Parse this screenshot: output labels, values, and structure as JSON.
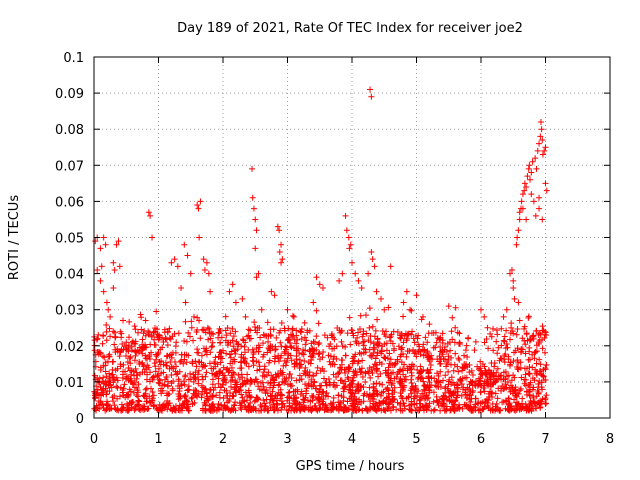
{
  "chart_data": {
    "type": "scatter",
    "title": "Day 189 of 2021, Rate Of TEC Index for receiver joe2",
    "xlabel": "GPS time / hours",
    "ylabel": "ROTI / TECUs",
    "xlim": [
      0,
      8
    ],
    "ylim": [
      0,
      0.1
    ],
    "xticks": [
      "0",
      "1",
      "2",
      "3",
      "4",
      "5",
      "6",
      "7",
      "8"
    ],
    "yticks": [
      "0",
      "0.01",
      "0.02",
      "0.03",
      "0.04",
      "0.05",
      "0.06",
      "0.07",
      "0.08",
      "0.09",
      "0.1"
    ],
    "grid": true,
    "marker": "+",
    "marker_color": "#ff0000",
    "series": [
      {
        "name": "ROTI",
        "points": [
          [
            0.02,
            0.049
          ],
          [
            0.05,
            0.05
          ],
          [
            0.05,
            0.041
          ],
          [
            0.1,
            0.047
          ],
          [
            0.12,
            0.042
          ],
          [
            0.15,
            0.05
          ],
          [
            0.18,
            0.048
          ],
          [
            0.1,
            0.038
          ],
          [
            0.15,
            0.035
          ],
          [
            0.2,
            0.032
          ],
          [
            0.22,
            0.03
          ],
          [
            0.3,
            0.043
          ],
          [
            0.32,
            0.041
          ],
          [
            0.35,
            0.048
          ],
          [
            0.38,
            0.049
          ],
          [
            0.4,
            0.042
          ],
          [
            0.3,
            0.036
          ],
          [
            0.25,
            0.028
          ],
          [
            0.45,
            0.027
          ],
          [
            0.5,
            0.021
          ],
          [
            0.85,
            0.057
          ],
          [
            0.87,
            0.056
          ],
          [
            0.9,
            0.05
          ],
          [
            0.8,
            0.027
          ],
          [
            0.95,
            0.024
          ],
          [
            1.0,
            0.018
          ],
          [
            1.2,
            0.043
          ],
          [
            1.25,
            0.044
          ],
          [
            1.3,
            0.042
          ],
          [
            1.4,
            0.048
          ],
          [
            1.45,
            0.045
          ],
          [
            1.5,
            0.04
          ],
          [
            1.35,
            0.036
          ],
          [
            1.42,
            0.032
          ],
          [
            1.55,
            0.028
          ],
          [
            1.6,
            0.059
          ],
          [
            1.62,
            0.058
          ],
          [
            1.65,
            0.06
          ],
          [
            1.63,
            0.05
          ],
          [
            1.7,
            0.044
          ],
          [
            1.72,
            0.041
          ],
          [
            1.75,
            0.043
          ],
          [
            1.78,
            0.04
          ],
          [
            1.8,
            0.035
          ],
          [
            2.1,
            0.035
          ],
          [
            2.15,
            0.037
          ],
          [
            2.2,
            0.032
          ],
          [
            2.3,
            0.033
          ],
          [
            2.35,
            0.028
          ],
          [
            2.45,
            0.069
          ],
          [
            2.46,
            0.061
          ],
          [
            2.48,
            0.058
          ],
          [
            2.5,
            0.055
          ],
          [
            2.52,
            0.052
          ],
          [
            2.5,
            0.047
          ],
          [
            2.55,
            0.04
          ],
          [
            2.52,
            0.039
          ],
          [
            2.6,
            0.03
          ],
          [
            2.85,
            0.053
          ],
          [
            2.87,
            0.052
          ],
          [
            2.9,
            0.048
          ],
          [
            2.88,
            0.046
          ],
          [
            2.92,
            0.044
          ],
          [
            2.9,
            0.043
          ],
          [
            2.75,
            0.035
          ],
          [
            2.8,
            0.034
          ],
          [
            3.0,
            0.03
          ],
          [
            3.1,
            0.028
          ],
          [
            3.45,
            0.039
          ],
          [
            3.5,
            0.037
          ],
          [
            3.55,
            0.036
          ],
          [
            3.4,
            0.032
          ],
          [
            3.8,
            0.038
          ],
          [
            3.85,
            0.04
          ],
          [
            3.9,
            0.056
          ],
          [
            3.92,
            0.052
          ],
          [
            3.95,
            0.05
          ],
          [
            3.98,
            0.048
          ],
          [
            3.96,
            0.047
          ],
          [
            4.0,
            0.043
          ],
          [
            4.05,
            0.04
          ],
          [
            4.1,
            0.038
          ],
          [
            4.15,
            0.036
          ],
          [
            4.28,
            0.091
          ],
          [
            4.3,
            0.089
          ],
          [
            4.3,
            0.046
          ],
          [
            4.32,
            0.044
          ],
          [
            4.35,
            0.042
          ],
          [
            4.25,
            0.04
          ],
          [
            4.38,
            0.035
          ],
          [
            4.45,
            0.033
          ],
          [
            4.5,
            0.03
          ],
          [
            4.6,
            0.042
          ],
          [
            4.8,
            0.032
          ],
          [
            4.85,
            0.035
          ],
          [
            4.9,
            0.03
          ],
          [
            5.0,
            0.034
          ],
          [
            5.1,
            0.028
          ],
          [
            5.2,
            0.026
          ],
          [
            5.5,
            0.031
          ],
          [
            5.6,
            0.025
          ],
          [
            5.8,
            0.022
          ],
          [
            6.0,
            0.03
          ],
          [
            6.05,
            0.028
          ],
          [
            6.1,
            0.025
          ],
          [
            6.35,
            0.028
          ],
          [
            6.4,
            0.03
          ],
          [
            6.45,
            0.04
          ],
          [
            6.48,
            0.041
          ],
          [
            6.5,
            0.038
          ],
          [
            6.5,
            0.036
          ],
          [
            6.52,
            0.033
          ],
          [
            6.55,
            0.048
          ],
          [
            6.56,
            0.05
          ],
          [
            6.58,
            0.052
          ],
          [
            6.6,
            0.055
          ],
          [
            6.6,
            0.057
          ],
          [
            6.62,
            0.058
          ],
          [
            6.63,
            0.06
          ],
          [
            6.65,
            0.062
          ],
          [
            6.67,
            0.063
          ],
          [
            6.68,
            0.065
          ],
          [
            6.7,
            0.064
          ],
          [
            6.72,
            0.067
          ],
          [
            6.74,
            0.069
          ],
          [
            6.75,
            0.07
          ],
          [
            6.76,
            0.066
          ],
          [
            6.78,
            0.068
          ],
          [
            6.8,
            0.071
          ],
          [
            6.82,
            0.06
          ],
          [
            6.84,
            0.072
          ],
          [
            6.86,
            0.069
          ],
          [
            6.88,
            0.074
          ],
          [
            6.9,
            0.076
          ],
          [
            6.92,
            0.078
          ],
          [
            6.93,
            0.082
          ],
          [
            6.94,
            0.08
          ],
          [
            6.95,
            0.077
          ],
          [
            6.96,
            0.073
          ],
          [
            6.98,
            0.074
          ],
          [
            7.0,
            0.075
          ],
          [
            7.0,
            0.065
          ],
          [
            7.02,
            0.063
          ],
          [
            6.9,
            0.061
          ],
          [
            6.85,
            0.056
          ],
          [
            6.95,
            0.055
          ],
          [
            6.7,
            0.055
          ],
          [
            6.65,
            0.058
          ],
          [
            6.9,
            0.058
          ],
          [
            6.78,
            0.062
          ],
          [
            6.58,
            0.032
          ],
          [
            6.6,
            0.027
          ]
        ],
        "cloud": {
          "x_range": [
            0,
            7.02
          ],
          "typical_range": [
            0.002,
            0.025
          ],
          "approx_point_count": 2600
        }
      }
    ]
  }
}
